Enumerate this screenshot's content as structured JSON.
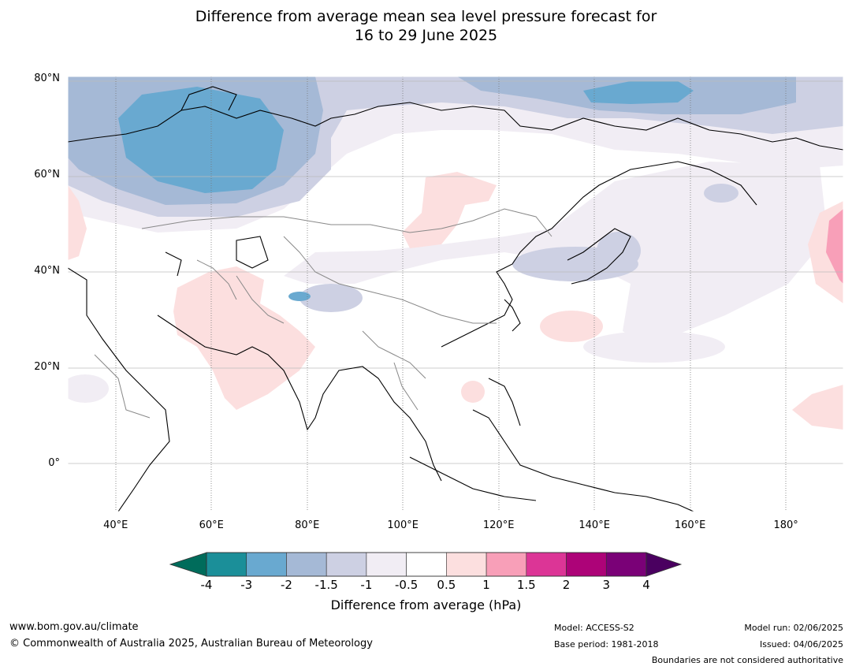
{
  "title_line1": "Difference from average mean sea level pressure forecast for",
  "title_line2": "16 to 29 June 2025",
  "map": {
    "lon_range": [
      30,
      192
    ],
    "lat_range": [
      -10,
      80.5
    ],
    "lat_ticks": [
      {
        "value": 80,
        "label": "80°N"
      },
      {
        "value": 60,
        "label": "60°N"
      },
      {
        "value": 40,
        "label": "40°N"
      },
      {
        "value": 20,
        "label": "20°N"
      },
      {
        "value": 0,
        "label": "0°"
      }
    ],
    "lon_ticks": [
      {
        "value": 40,
        "label": "40°E"
      },
      {
        "value": 60,
        "label": "60°E"
      },
      {
        "value": 80,
        "label": "80°E"
      },
      {
        "value": 100,
        "label": "100°E"
      },
      {
        "value": 120,
        "label": "120°E"
      },
      {
        "value": 140,
        "label": "140°E"
      },
      {
        "value": 160,
        "label": "160°E"
      },
      {
        "value": 180,
        "label": "180°"
      }
    ]
  },
  "colorbar": {
    "title": "Difference from average (hPa)",
    "ticks": [
      "-4",
      "-3",
      "-2",
      "-1.5",
      "-1",
      "-0.5",
      "0.5",
      "1",
      "1.5",
      "2",
      "3",
      "4"
    ],
    "under_color": "#006c5b",
    "over_color": "#4a0060",
    "colors": [
      "#1b8f99",
      "#69a9d0",
      "#a5b9d6",
      "#cdd0e3",
      "#f1edf4",
      "#ffffff",
      "#fcdfdf",
      "#f89fb8",
      "#dc3596",
      "#ad0378",
      "#7a0177"
    ]
  },
  "footer": {
    "url": "www.bom.gov.au/climate",
    "copyright": "© Commonwealth of Australia 2025, Australian Bureau of Meteorology",
    "model": "Model: ACCESS-S2",
    "base_period": "Base period: 1981-2018",
    "model_run": "Model run: 02/06/2025",
    "issued": "Issued: 04/06/2025",
    "disclaimer": "Boundaries are not considered authoritative"
  }
}
